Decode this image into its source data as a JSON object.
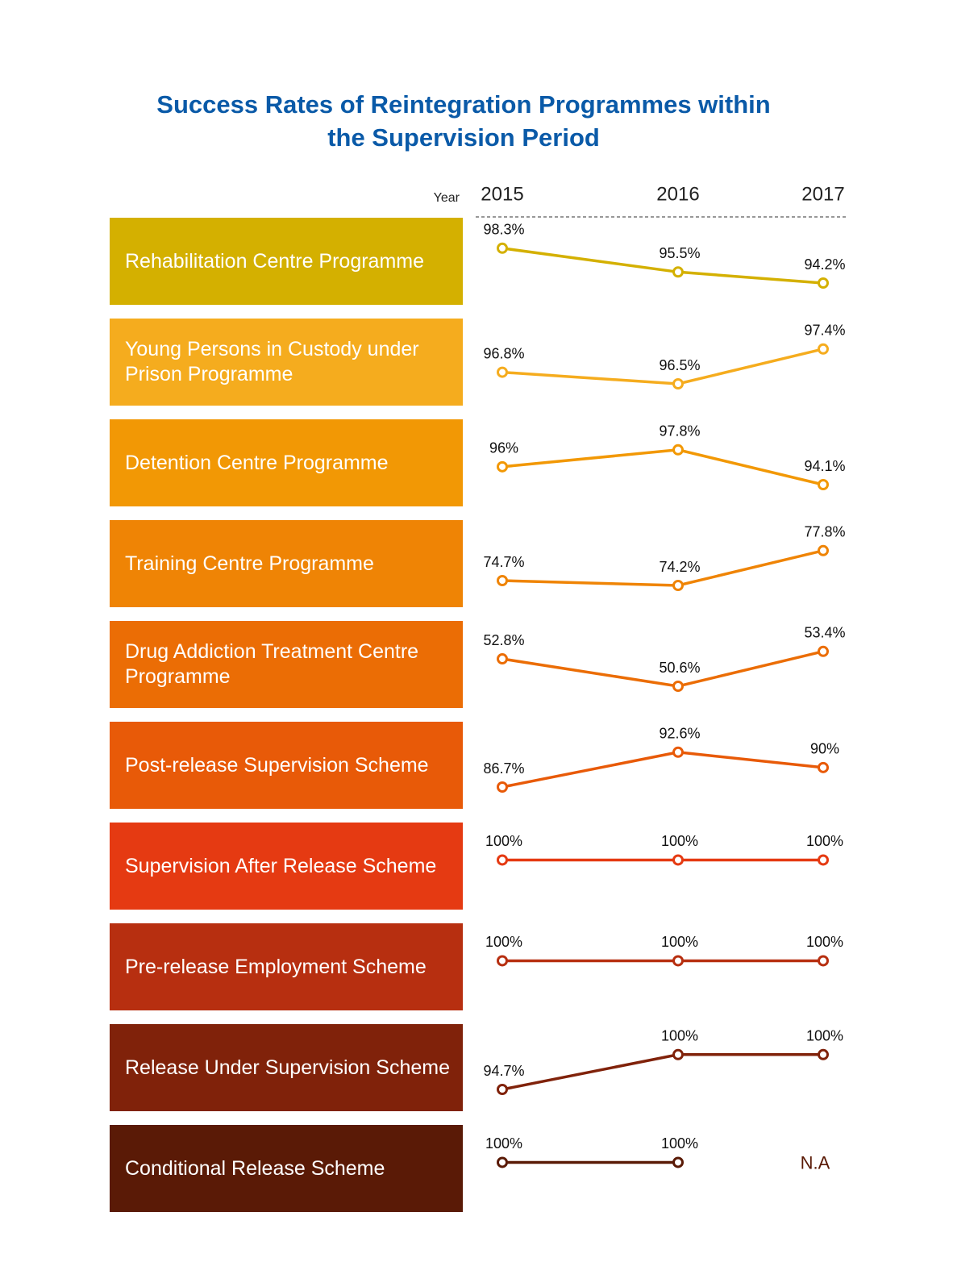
{
  "chart_data": {
    "type": "line",
    "title": [
      "Success Rates of Reintegration Programmes within",
      "the Supervision Period"
    ],
    "x_label": "Year",
    "categories": [
      "2015",
      "2016",
      "2017"
    ],
    "series": [
      {
        "name": "Rehabilitation Centre Programme",
        "color": "#d4b000",
        "values": [
          98.3,
          95.5,
          94.2
        ],
        "value_labels": [
          "98.3%",
          "95.5%",
          "94.2%"
        ]
      },
      {
        "name": "Young Persons in Custody under Prison Programme",
        "color": "#f5ac1e",
        "values": [
          96.8,
          96.5,
          97.4
        ],
        "value_labels": [
          "96.8%",
          "96.5%",
          "97.4%"
        ]
      },
      {
        "name": "Detention Centre Programme",
        "color": "#f29805",
        "values": [
          96,
          97.8,
          94.1
        ],
        "value_labels": [
          "96%",
          "97.8%",
          "94.1%"
        ]
      },
      {
        "name": "Training Centre Programme",
        "color": "#ef8405",
        "values": [
          74.7,
          74.2,
          77.8
        ],
        "value_labels": [
          "74.7%",
          "74.2%",
          "77.8%"
        ]
      },
      {
        "name": "Drug Addiction Treatment Centre Programme",
        "color": "#eb6d05",
        "values": [
          52.8,
          50.6,
          53.4
        ],
        "value_labels": [
          "52.8%",
          "50.6%",
          "53.4%"
        ]
      },
      {
        "name": "Post-release Supervision Scheme",
        "color": "#e85a08",
        "values": [
          86.7,
          92.6,
          90
        ],
        "value_labels": [
          "86.7%",
          "92.6%",
          "90%"
        ]
      },
      {
        "name": "Supervision After Release Scheme",
        "color": "#e53a12",
        "values": [
          100,
          100,
          100
        ],
        "value_labels": [
          "100%",
          "100%",
          "100%"
        ]
      },
      {
        "name": "Pre-release Employment Scheme",
        "color": "#b72f10",
        "values": [
          100,
          100,
          100
        ],
        "value_labels": [
          "100%",
          "100%",
          "100%"
        ]
      },
      {
        "name": "Release Under Supervision Scheme",
        "color": "#80220a",
        "values": [
          94.7,
          100,
          100
        ],
        "value_labels": [
          "94.7%",
          "100%",
          "100%"
        ]
      },
      {
        "name": "Conditional Release Scheme",
        "color": "#5a1a06",
        "values": [
          100,
          100,
          null
        ],
        "value_labels": [
          "100%",
          "100%",
          "N.A"
        ]
      }
    ]
  }
}
